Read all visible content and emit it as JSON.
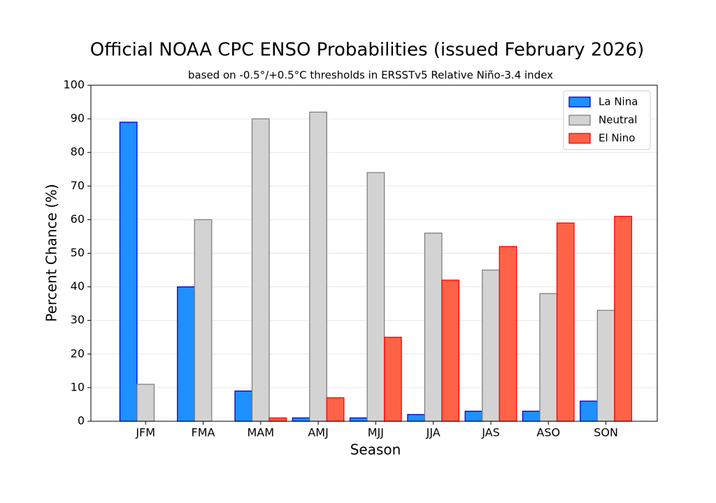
{
  "chart_data": {
    "type": "bar",
    "title": "Official NOAA CPC ENSO Probabilities (issued February 2026)",
    "subtitle": "based on -0.5°/+0.5°C thresholds in ERSSTv5 Relative Niño-3.4 index",
    "x_label": "Season",
    "y_label": "Percent Chance (%)",
    "categories": [
      "JFM",
      "FMA",
      "MAM",
      "AMJ",
      "MJJ",
      "JJA",
      "JAS",
      "ASO",
      "SON"
    ],
    "series": [
      {
        "name": "La Nina",
        "color": "#1e90ff",
        "edgecolor": "#0000cd",
        "values": [
          89,
          40,
          9,
          1,
          1,
          2,
          3,
          3,
          6
        ]
      },
      {
        "name": "Neutral",
        "color": "#d3d3d3",
        "edgecolor": "#808080",
        "values": [
          11,
          60,
          90,
          92,
          74,
          56,
          45,
          38,
          33
        ]
      },
      {
        "name": "El Nino",
        "color": "#ff6347",
        "edgecolor": "#ff0000",
        "values": [
          0,
          0,
          1,
          7,
          25,
          42,
          52,
          59,
          61
        ]
      }
    ],
    "ylim": [
      0,
      100
    ],
    "yticks": [
      0,
      10,
      20,
      30,
      40,
      50,
      60,
      70,
      80,
      90,
      100
    ],
    "grid": true,
    "legend": "upper right"
  }
}
